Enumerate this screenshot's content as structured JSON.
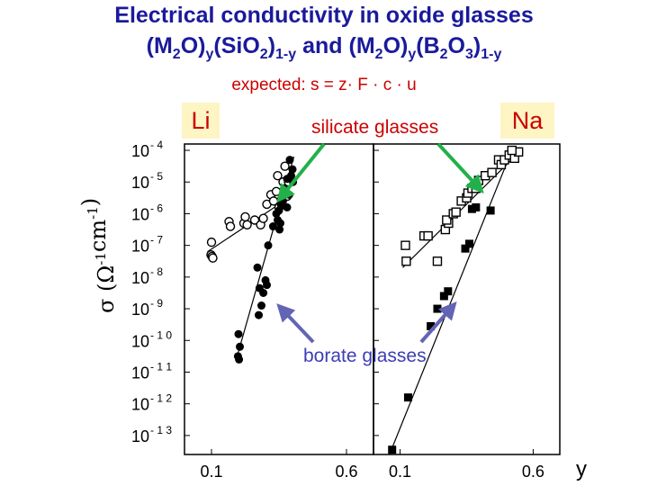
{
  "title": {
    "line1": "Electrical  conductivity in oxide glasses",
    "line2": {
      "p1": "(M",
      "s1": "2",
      "p2": "O)",
      "s2": "y",
      "p3": "(SiO",
      "s3": "2",
      "p4": ")",
      "s4": "1-y",
      "p5": " and (M",
      "s5": "2",
      "p6": "O)",
      "s6": "y",
      "p7": "(B",
      "s7": "2",
      "p8": "O",
      "s8": "3",
      "p9": ")",
      "s9": "1-y"
    }
  },
  "formula": "expected: s = z· F · c · u",
  "labels": {
    "li": "Li",
    "na": "Na",
    "silicate": "silicate glasses",
    "borate": "borate glasses",
    "x_var": "y"
  },
  "colors": {
    "title": "#1a1a9c",
    "red_text": "#cc0000",
    "tag_background": "#fdf5c4",
    "silicate_arrow": "#22b04a",
    "borate_arrow": "#6464b4"
  },
  "chart_data": {
    "type": "scatter",
    "yscale": "log",
    "ylabel": "σ (Ω⁻¹cm⁻¹)",
    "ylabel_parts": {
      "sigma": "σ",
      "open": "(",
      "omega": "Ω",
      "exp1": "-1",
      "cm": "cm",
      "exp2": "-1",
      "close": ")"
    },
    "y_ticks": [
      {
        "base": "10",
        "exp": "- 4",
        "value": -4
      },
      {
        "base": "10",
        "exp": "- 5",
        "value": -5
      },
      {
        "base": "10",
        "exp": "- 6",
        "value": -6
      },
      {
        "base": "10",
        "exp": "- 7",
        "value": -7
      },
      {
        "base": "10",
        "exp": "- 8",
        "value": -8
      },
      {
        "base": "10",
        "exp": "- 9",
        "value": -9
      },
      {
        "base": "10",
        "exp": "- 1 0",
        "value": -10
      },
      {
        "base": "10",
        "exp": "- 1 1",
        "value": -11
      },
      {
        "base": "10",
        "exp": "- 1 2",
        "value": -12
      },
      {
        "base": "10",
        "exp": "- 1 3",
        "value": -13
      }
    ],
    "ylim_log10": [
      -13.6,
      -3.8
    ],
    "panels": [
      {
        "name": "Li",
        "xlim": [
          0.0,
          0.7
        ],
        "x_ticks": [
          {
            "label": "0.1",
            "value": 0.1
          },
          {
            "label": "0.6",
            "value": 0.6
          }
        ],
        "series": [
          {
            "marker": "open-circle",
            "points": [
              [
                0.1,
                -6.9
              ],
              [
                0.098,
                -7.3
              ],
              [
                0.102,
                -7.35
              ],
              [
                0.105,
                -7.4
              ],
              [
                0.165,
                -6.25
              ],
              [
                0.17,
                -6.4
              ],
              [
                0.22,
                -6.3
              ],
              [
                0.232,
                -6.35
              ],
              [
                0.225,
                -6.1
              ],
              [
                0.26,
                -6.2
              ],
              [
                0.282,
                -6.35
              ],
              [
                0.292,
                -6.15
              ],
              [
                0.305,
                -5.7
              ],
              [
                0.32,
                -5.4
              ],
              [
                0.34,
                -5.3
              ],
              [
                0.345,
                -4.8
              ],
              [
                0.365,
                -5.0
              ],
              [
                0.372,
                -4.5
              ],
              [
                0.33,
                -5.6
              ],
              [
                0.36,
                -5.55
              ],
              [
                0.38,
                -5.45
              ],
              [
                0.385,
                -5.0
              ],
              [
                0.35,
                -5.8
              ],
              [
                0.36,
                -5.7
              ]
            ]
          },
          {
            "marker": "filled-circle",
            "points": [
              [
                0.39,
                -4.3
              ],
              [
                0.4,
                -4.6
              ],
              [
                0.395,
                -4.8
              ],
              [
                0.38,
                -4.9
              ],
              [
                0.402,
                -5.0
              ],
              [
                0.37,
                -5.2
              ],
              [
                0.388,
                -5.4
              ],
              [
                0.365,
                -5.6
              ],
              [
                0.358,
                -5.75
              ],
              [
                0.38,
                -5.8
              ],
              [
                0.35,
                -5.9
              ],
              [
                0.34,
                -6.0
              ],
              [
                0.345,
                -6.2
              ],
              [
                0.355,
                -6.3
              ],
              [
                0.352,
                -6.5
              ],
              [
                0.328,
                -6.4
              ],
              [
                0.31,
                -7.0
              ],
              [
                0.27,
                -7.7
              ],
              [
                0.3,
                -8.1
              ],
              [
                0.305,
                -8.25
              ],
              [
                0.292,
                -8.5
              ],
              [
                0.278,
                -8.35
              ],
              [
                0.285,
                -8.9
              ],
              [
                0.275,
                -9.2
              ],
              [
                0.2,
                -9.8
              ],
              [
                0.205,
                -10.2
              ],
              [
                0.198,
                -10.5
              ],
              [
                0.202,
                -10.6
              ]
            ]
          }
        ],
        "fit_lines": [
          {
            "style": "solid",
            "points": [
              [
                0.085,
                -7.2
              ],
              [
                0.395,
                -5.45
              ]
            ]
          },
          {
            "style": "solid",
            "points": [
              [
                0.195,
                -10.5
              ],
              [
                0.405,
                -4.2
              ]
            ]
          }
        ]
      },
      {
        "name": "Na",
        "xlim": [
          0.0,
          0.7
        ],
        "x_ticks": [
          {
            "label": "0.1",
            "value": 0.1
          },
          {
            "label": "0.6",
            "value": 0.6
          }
        ],
        "series": [
          {
            "marker": "open-square",
            "points": [
              [
                0.12,
                -7.0
              ],
              [
                0.123,
                -7.5
              ],
              [
                0.19,
                -6.7
              ],
              [
                0.205,
                -6.7
              ],
              [
                0.24,
                -7.5
              ],
              [
                0.27,
                -6.5
              ],
              [
                0.282,
                -6.3
              ],
              [
                0.275,
                -6.2
              ],
              [
                0.3,
                -6.0
              ],
              [
                0.31,
                -5.95
              ],
              [
                0.33,
                -5.6
              ],
              [
                0.35,
                -5.5
              ],
              [
                0.355,
                -5.35
              ],
              [
                0.37,
                -5.2
              ],
              [
                0.385,
                -5.2
              ],
              [
                0.395,
                -4.95
              ],
              [
                0.42,
                -4.8
              ],
              [
                0.445,
                -4.7
              ],
              [
                0.47,
                -4.3
              ],
              [
                0.48,
                -4.45
              ],
              [
                0.492,
                -4.3
              ],
              [
                0.51,
                -4.15
              ],
              [
                0.53,
                -4.25
              ],
              [
                0.545,
                -4.05
              ],
              [
                0.52,
                -4.0
              ]
            ]
          },
          {
            "marker": "filled-square",
            "points": [
              [
                0.07,
                -13.45
              ],
              [
                0.13,
                -11.8
              ],
              [
                0.215,
                -9.55
              ],
              [
                0.24,
                -9.0
              ],
              [
                0.265,
                -8.6
              ],
              [
                0.28,
                -8.45
              ],
              [
                0.345,
                -7.1
              ],
              [
                0.36,
                -6.95
              ],
              [
                0.44,
                -5.9
              ],
              [
                0.385,
                -5.8
              ],
              [
                0.37,
                -5.85
              ]
            ]
          }
        ],
        "fit_lines": [
          {
            "style": "solid",
            "points": [
              [
                0.11,
                -7.7
              ],
              [
                0.56,
                -3.95
              ]
            ]
          },
          {
            "style": "solid",
            "points": [
              [
                0.06,
                -13.6
              ],
              [
                0.52,
                -4.0
              ]
            ]
          }
        ]
      }
    ]
  }
}
